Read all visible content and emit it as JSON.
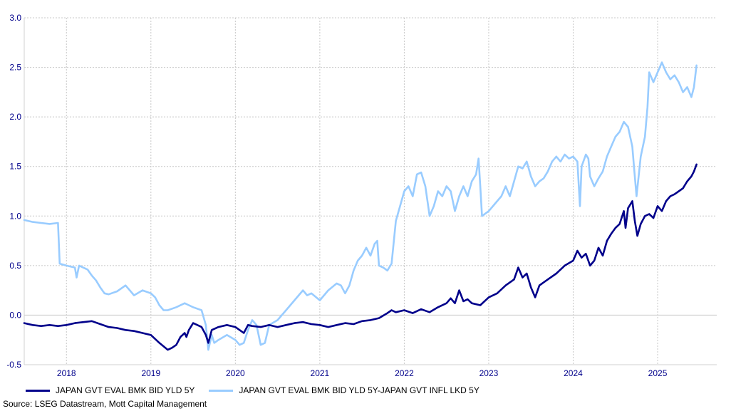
{
  "chart_data": {
    "type": "line",
    "title": "",
    "xlabel": "",
    "ylabel": "",
    "ylim": [
      -0.5,
      3.0
    ],
    "yticks": [
      "3.0",
      "2.5",
      "2.0",
      "1.5",
      "1.0",
      "0.5",
      "0.0",
      "-0.5"
    ],
    "ytick_values": [
      3.0,
      2.5,
      2.0,
      1.5,
      1.0,
      0.5,
      0.0,
      -0.5
    ],
    "xlim": [
      2017.5,
      2025.7
    ],
    "xtick_labels": [
      "2018",
      "2019",
      "2020",
      "2021",
      "2022",
      "2023",
      "2024",
      "2025"
    ],
    "grid": true,
    "legend_position": "bottom",
    "series": [
      {
        "name": "JAPAN GVT EVAL BMK BID YLD 5Y",
        "color": "#00008b",
        "points": [
          [
            2017.5,
            -0.08
          ],
          [
            2017.6,
            -0.1
          ],
          [
            2017.7,
            -0.11
          ],
          [
            2017.8,
            -0.1
          ],
          [
            2017.9,
            -0.11
          ],
          [
            2018.0,
            -0.1
          ],
          [
            2018.1,
            -0.08
          ],
          [
            2018.2,
            -0.07
          ],
          [
            2018.3,
            -0.06
          ],
          [
            2018.4,
            -0.09
          ],
          [
            2018.5,
            -0.12
          ],
          [
            2018.6,
            -0.13
          ],
          [
            2018.7,
            -0.15
          ],
          [
            2018.8,
            -0.16
          ],
          [
            2018.9,
            -0.18
          ],
          [
            2019.0,
            -0.2
          ],
          [
            2019.1,
            -0.28
          ],
          [
            2019.2,
            -0.35
          ],
          [
            2019.25,
            -0.33
          ],
          [
            2019.3,
            -0.3
          ],
          [
            2019.35,
            -0.22
          ],
          [
            2019.4,
            -0.18
          ],
          [
            2019.42,
            -0.22
          ],
          [
            2019.45,
            -0.15
          ],
          [
            2019.5,
            -0.08
          ],
          [
            2019.55,
            -0.1
          ],
          [
            2019.6,
            -0.12
          ],
          [
            2019.65,
            -0.2
          ],
          [
            2019.68,
            -0.28
          ],
          [
            2019.72,
            -0.15
          ],
          [
            2019.8,
            -0.12
          ],
          [
            2019.9,
            -0.1
          ],
          [
            2020.0,
            -0.12
          ],
          [
            2020.05,
            -0.15
          ],
          [
            2020.1,
            -0.18
          ],
          [
            2020.15,
            -0.1
          ],
          [
            2020.2,
            -0.11
          ],
          [
            2020.3,
            -0.12
          ],
          [
            2020.4,
            -0.1
          ],
          [
            2020.5,
            -0.12
          ],
          [
            2020.6,
            -0.1
          ],
          [
            2020.7,
            -0.08
          ],
          [
            2020.8,
            -0.07
          ],
          [
            2020.9,
            -0.09
          ],
          [
            2021.0,
            -0.1
          ],
          [
            2021.1,
            -0.12
          ],
          [
            2021.2,
            -0.1
          ],
          [
            2021.3,
            -0.08
          ],
          [
            2021.4,
            -0.09
          ],
          [
            2021.5,
            -0.06
          ],
          [
            2021.6,
            -0.05
          ],
          [
            2021.7,
            -0.03
          ],
          [
            2021.8,
            0.02
          ],
          [
            2021.85,
            0.05
          ],
          [
            2021.9,
            0.03
          ],
          [
            2022.0,
            0.05
          ],
          [
            2022.1,
            0.02
          ],
          [
            2022.2,
            0.06
          ],
          [
            2022.3,
            0.03
          ],
          [
            2022.4,
            0.08
          ],
          [
            2022.5,
            0.12
          ],
          [
            2022.55,
            0.17
          ],
          [
            2022.6,
            0.12
          ],
          [
            2022.65,
            0.25
          ],
          [
            2022.7,
            0.14
          ],
          [
            2022.75,
            0.16
          ],
          [
            2022.8,
            0.12
          ],
          [
            2022.9,
            0.1
          ],
          [
            2023.0,
            0.18
          ],
          [
            2023.1,
            0.22
          ],
          [
            2023.2,
            0.3
          ],
          [
            2023.3,
            0.36
          ],
          [
            2023.35,
            0.48
          ],
          [
            2023.4,
            0.38
          ],
          [
            2023.45,
            0.42
          ],
          [
            2023.5,
            0.28
          ],
          [
            2023.55,
            0.18
          ],
          [
            2023.6,
            0.3
          ],
          [
            2023.7,
            0.36
          ],
          [
            2023.8,
            0.42
          ],
          [
            2023.9,
            0.5
          ],
          [
            2024.0,
            0.55
          ],
          [
            2024.05,
            0.65
          ],
          [
            2024.1,
            0.58
          ],
          [
            2024.15,
            0.62
          ],
          [
            2024.2,
            0.5
          ],
          [
            2024.25,
            0.55
          ],
          [
            2024.3,
            0.68
          ],
          [
            2024.35,
            0.6
          ],
          [
            2024.4,
            0.75
          ],
          [
            2024.45,
            0.82
          ],
          [
            2024.5,
            0.88
          ],
          [
            2024.55,
            0.92
          ],
          [
            2024.6,
            1.05
          ],
          [
            2024.62,
            0.88
          ],
          [
            2024.65,
            1.08
          ],
          [
            2024.7,
            1.15
          ],
          [
            2024.73,
            0.95
          ],
          [
            2024.76,
            0.8
          ],
          [
            2024.8,
            0.92
          ],
          [
            2024.85,
            1.0
          ],
          [
            2024.9,
            1.02
          ],
          [
            2024.95,
            0.98
          ],
          [
            2025.0,
            1.1
          ],
          [
            2025.05,
            1.05
          ],
          [
            2025.1,
            1.15
          ],
          [
            2025.15,
            1.2
          ],
          [
            2025.2,
            1.22
          ],
          [
            2025.25,
            1.25
          ],
          [
            2025.3,
            1.28
          ],
          [
            2025.35,
            1.35
          ],
          [
            2025.4,
            1.4
          ],
          [
            2025.43,
            1.45
          ],
          [
            2025.46,
            1.52
          ]
        ]
      },
      {
        "name": "JAPAN GVT EVAL BMK BID YLD 5Y-JAPAN GVT INFL LKD 5Y",
        "color": "#99ccff",
        "points": [
          [
            2017.5,
            0.96
          ],
          [
            2017.6,
            0.94
          ],
          [
            2017.7,
            0.93
          ],
          [
            2017.8,
            0.92
          ],
          [
            2017.9,
            0.93
          ],
          [
            2017.92,
            0.52
          ],
          [
            2018.0,
            0.5
          ],
          [
            2018.1,
            0.48
          ],
          [
            2018.12,
            0.38
          ],
          [
            2018.15,
            0.5
          ],
          [
            2018.25,
            0.46
          ],
          [
            2018.3,
            0.4
          ],
          [
            2018.35,
            0.35
          ],
          [
            2018.4,
            0.28
          ],
          [
            2018.45,
            0.22
          ],
          [
            2018.5,
            0.21
          ],
          [
            2018.6,
            0.24
          ],
          [
            2018.7,
            0.3
          ],
          [
            2018.75,
            0.25
          ],
          [
            2018.8,
            0.2
          ],
          [
            2018.9,
            0.25
          ],
          [
            2019.0,
            0.22
          ],
          [
            2019.05,
            0.18
          ],
          [
            2019.1,
            0.1
          ],
          [
            2019.15,
            0.05
          ],
          [
            2019.2,
            0.05
          ],
          [
            2019.3,
            0.08
          ],
          [
            2019.4,
            0.12
          ],
          [
            2019.45,
            0.1
          ],
          [
            2019.5,
            0.08
          ],
          [
            2019.6,
            0.05
          ],
          [
            2019.65,
            -0.1
          ],
          [
            2019.68,
            -0.35
          ],
          [
            2019.72,
            -0.2
          ],
          [
            2019.75,
            -0.28
          ],
          [
            2019.8,
            -0.25
          ],
          [
            2019.9,
            -0.2
          ],
          [
            2020.0,
            -0.25
          ],
          [
            2020.05,
            -0.3
          ],
          [
            2020.1,
            -0.28
          ],
          [
            2020.15,
            -0.15
          ],
          [
            2020.2,
            -0.05
          ],
          [
            2020.25,
            -0.1
          ],
          [
            2020.3,
            -0.3
          ],
          [
            2020.35,
            -0.28
          ],
          [
            2020.4,
            -0.1
          ],
          [
            2020.5,
            -0.05
          ],
          [
            2020.6,
            0.05
          ],
          [
            2020.7,
            0.15
          ],
          [
            2020.8,
            0.25
          ],
          [
            2020.85,
            0.2
          ],
          [
            2020.9,
            0.22
          ],
          [
            2021.0,
            0.15
          ],
          [
            2021.1,
            0.25
          ],
          [
            2021.2,
            0.32
          ],
          [
            2021.25,
            0.3
          ],
          [
            2021.3,
            0.22
          ],
          [
            2021.35,
            0.3
          ],
          [
            2021.4,
            0.45
          ],
          [
            2021.45,
            0.55
          ],
          [
            2021.5,
            0.6
          ],
          [
            2021.55,
            0.68
          ],
          [
            2021.6,
            0.6
          ],
          [
            2021.65,
            0.72
          ],
          [
            2021.68,
            0.75
          ],
          [
            2021.7,
            0.5
          ],
          [
            2021.75,
            0.48
          ],
          [
            2021.8,
            0.45
          ],
          [
            2021.85,
            0.52
          ],
          [
            2021.9,
            0.95
          ],
          [
            2021.95,
            1.1
          ],
          [
            2022.0,
            1.25
          ],
          [
            2022.05,
            1.3
          ],
          [
            2022.1,
            1.2
          ],
          [
            2022.15,
            1.42
          ],
          [
            2022.2,
            1.44
          ],
          [
            2022.25,
            1.3
          ],
          [
            2022.3,
            1.0
          ],
          [
            2022.35,
            1.1
          ],
          [
            2022.4,
            1.25
          ],
          [
            2022.45,
            1.2
          ],
          [
            2022.5,
            1.3
          ],
          [
            2022.55,
            1.25
          ],
          [
            2022.6,
            1.05
          ],
          [
            2022.65,
            1.2
          ],
          [
            2022.7,
            1.3
          ],
          [
            2022.75,
            1.2
          ],
          [
            2022.8,
            1.35
          ],
          [
            2022.85,
            1.42
          ],
          [
            2022.88,
            1.58
          ],
          [
            2022.9,
            1.3
          ],
          [
            2022.92,
            1.0
          ],
          [
            2023.0,
            1.05
          ],
          [
            2023.05,
            1.1
          ],
          [
            2023.1,
            1.15
          ],
          [
            2023.15,
            1.2
          ],
          [
            2023.2,
            1.3
          ],
          [
            2023.25,
            1.2
          ],
          [
            2023.3,
            1.35
          ],
          [
            2023.35,
            1.5
          ],
          [
            2023.4,
            1.48
          ],
          [
            2023.45,
            1.55
          ],
          [
            2023.5,
            1.4
          ],
          [
            2023.55,
            1.3
          ],
          [
            2023.6,
            1.35
          ],
          [
            2023.65,
            1.38
          ],
          [
            2023.7,
            1.45
          ],
          [
            2023.75,
            1.55
          ],
          [
            2023.8,
            1.6
          ],
          [
            2023.85,
            1.55
          ],
          [
            2023.9,
            1.62
          ],
          [
            2023.95,
            1.58
          ],
          [
            2024.0,
            1.6
          ],
          [
            2024.05,
            1.55
          ],
          [
            2024.08,
            1.1
          ],
          [
            2024.1,
            1.5
          ],
          [
            2024.15,
            1.62
          ],
          [
            2024.18,
            1.58
          ],
          [
            2024.2,
            1.4
          ],
          [
            2024.25,
            1.3
          ],
          [
            2024.3,
            1.38
          ],
          [
            2024.35,
            1.45
          ],
          [
            2024.4,
            1.6
          ],
          [
            2024.45,
            1.7
          ],
          [
            2024.5,
            1.8
          ],
          [
            2024.55,
            1.85
          ],
          [
            2024.6,
            1.95
          ],
          [
            2024.65,
            1.9
          ],
          [
            2024.7,
            1.7
          ],
          [
            2024.72,
            1.5
          ],
          [
            2024.75,
            1.2
          ],
          [
            2024.8,
            1.6
          ],
          [
            2024.85,
            1.8
          ],
          [
            2024.88,
            2.1
          ],
          [
            2024.9,
            2.45
          ],
          [
            2024.95,
            2.35
          ],
          [
            2025.0,
            2.45
          ],
          [
            2025.05,
            2.55
          ],
          [
            2025.1,
            2.45
          ],
          [
            2025.15,
            2.38
          ],
          [
            2025.2,
            2.42
          ],
          [
            2025.25,
            2.35
          ],
          [
            2025.3,
            2.25
          ],
          [
            2025.35,
            2.3
          ],
          [
            2025.4,
            2.2
          ],
          [
            2025.43,
            2.3
          ],
          [
            2025.46,
            2.52
          ]
        ]
      }
    ]
  },
  "legend": {
    "item1": "JAPAN GVT EVAL BMK BID YLD 5Y",
    "item2": "JAPAN GVT EVAL BMK BID YLD 5Y-JAPAN GVT INFL LKD 5Y"
  },
  "source": "Source: LSEG Datastream, Mott Capital Management"
}
